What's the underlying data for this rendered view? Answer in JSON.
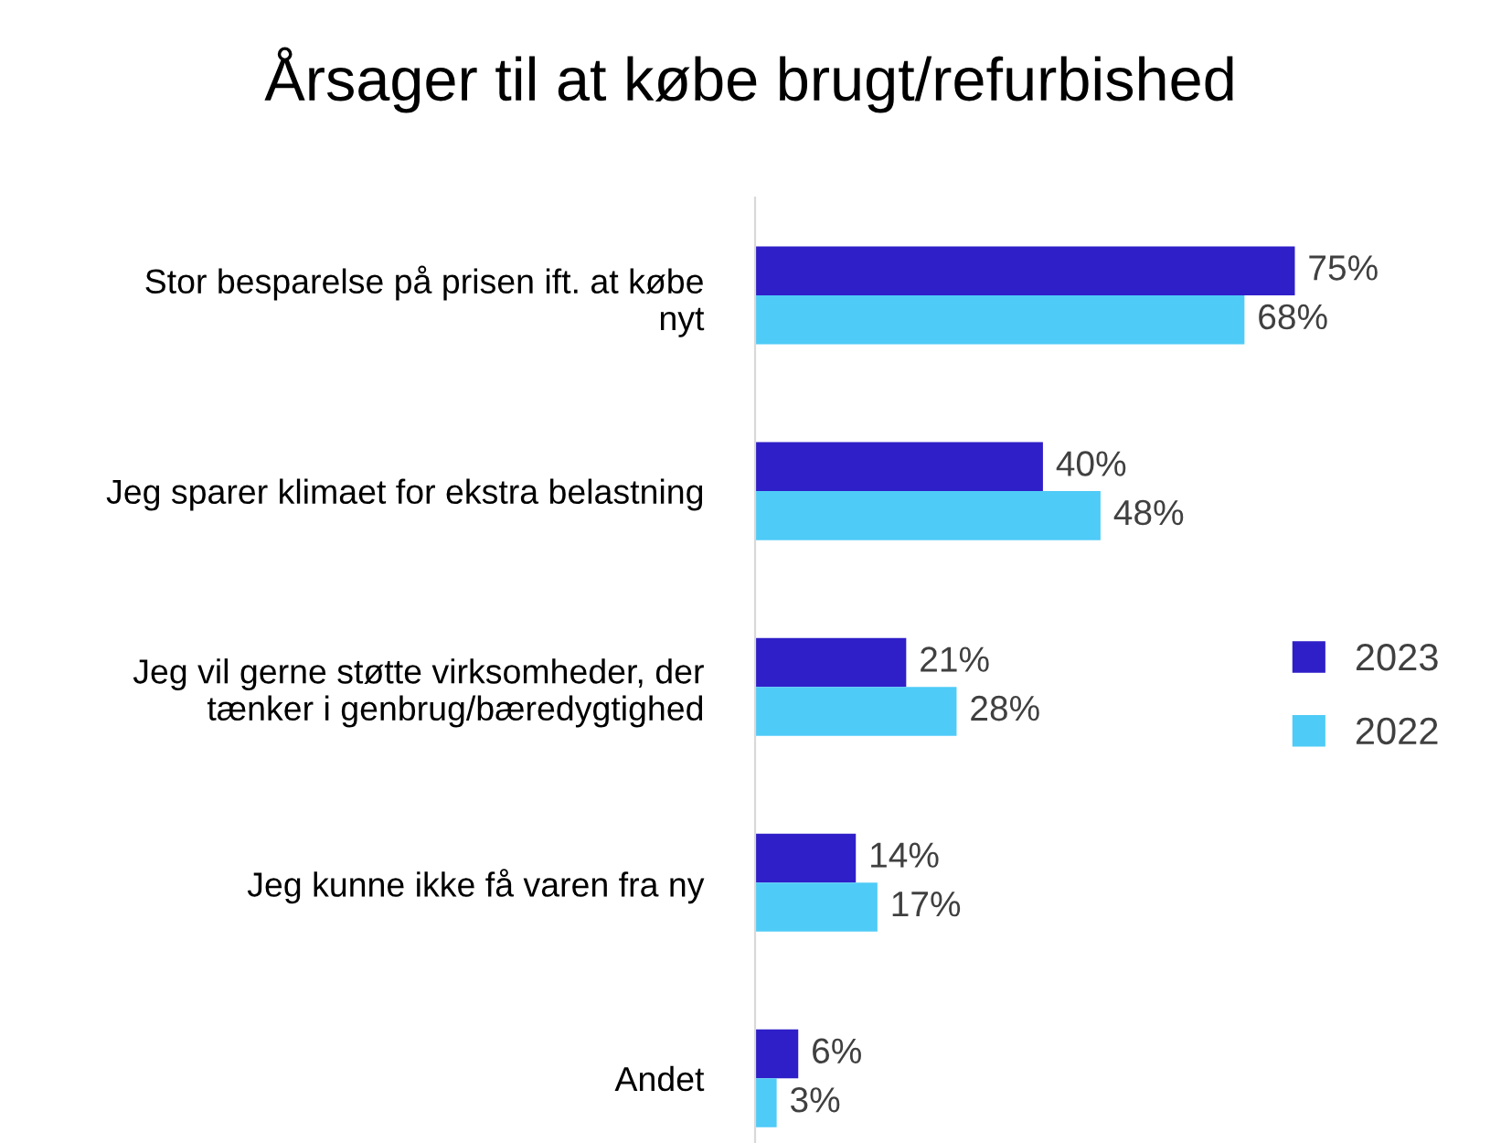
{
  "chart_data": {
    "type": "bar",
    "orientation": "horizontal",
    "title": "Årsager til at købe brugt/refurbished",
    "categories": [
      "Stor besparelse på prisen ift. at købe\nnyt",
      "Jeg sparer klimaet for ekstra belastning",
      "Jeg vil gerne støtte virksomheder, der\ntænker i genbrug/bæredygtighed",
      "Jeg kunne ikke få varen fra ny",
      "Andet"
    ],
    "series": [
      {
        "name": "2023",
        "color": "#2f1fc8",
        "values": [
          75,
          40,
          21,
          14,
          6
        ],
        "value_labels": [
          "75%",
          "40%",
          "21%",
          "14%",
          "6%"
        ]
      },
      {
        "name": "2022",
        "color": "#4fcbf7",
        "values": [
          68,
          48,
          28,
          17,
          3
        ],
        "value_labels": [
          "68%",
          "48%",
          "28%",
          "17%",
          "3%"
        ]
      }
    ],
    "tick_labels": "y",
    "legend": "right",
    "grid": false
  }
}
